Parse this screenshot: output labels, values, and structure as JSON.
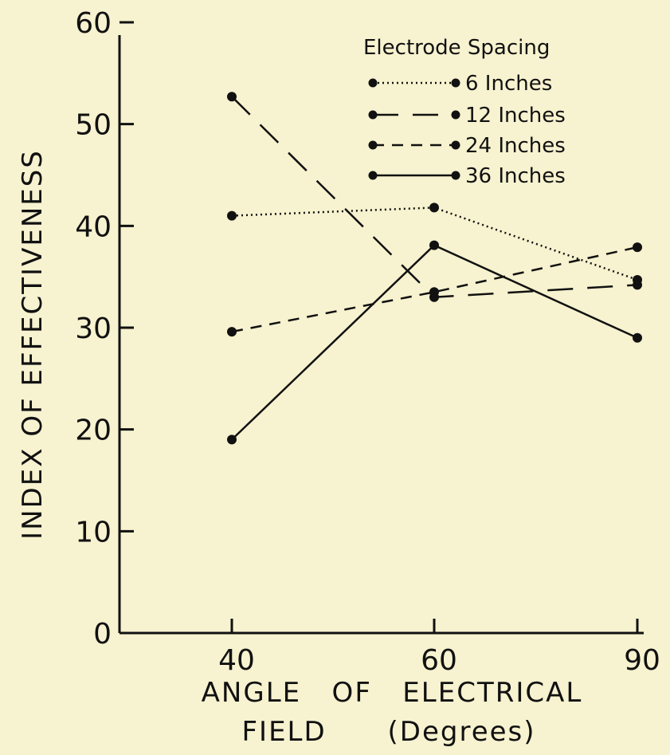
{
  "chart_data": {
    "type": "line",
    "x": [
      40,
      60,
      90
    ],
    "x_tick_labels": [
      "40",
      "60",
      "90"
    ],
    "y_tick_labels": [
      "0",
      "10",
      "20",
      "30",
      "40",
      "50",
      "60"
    ],
    "ylim": [
      0,
      60
    ],
    "ylabel": "INDEX OF EFFECTIVENESS",
    "xlabel_line1": "ANGLE   OF   ELECTRICAL",
    "xlabel_line2": "FIELD      (Degrees)",
    "legend_title": "Electrode  Spacing",
    "legend_position": "top-right",
    "grid": false,
    "series": [
      {
        "name": "6  Inches",
        "values": [
          41,
          41.8,
          34.7
        ],
        "style": "dotted"
      },
      {
        "name": "12 Inches",
        "values": [
          52.7,
          33,
          34.2
        ],
        "style": "long-dash"
      },
      {
        "name": "24 Inches",
        "values": [
          29.6,
          33.5,
          37.9
        ],
        "style": "dashed"
      },
      {
        "name": "36 Inches",
        "values": [
          19,
          38.1,
          29
        ],
        "style": "solid"
      }
    ]
  }
}
